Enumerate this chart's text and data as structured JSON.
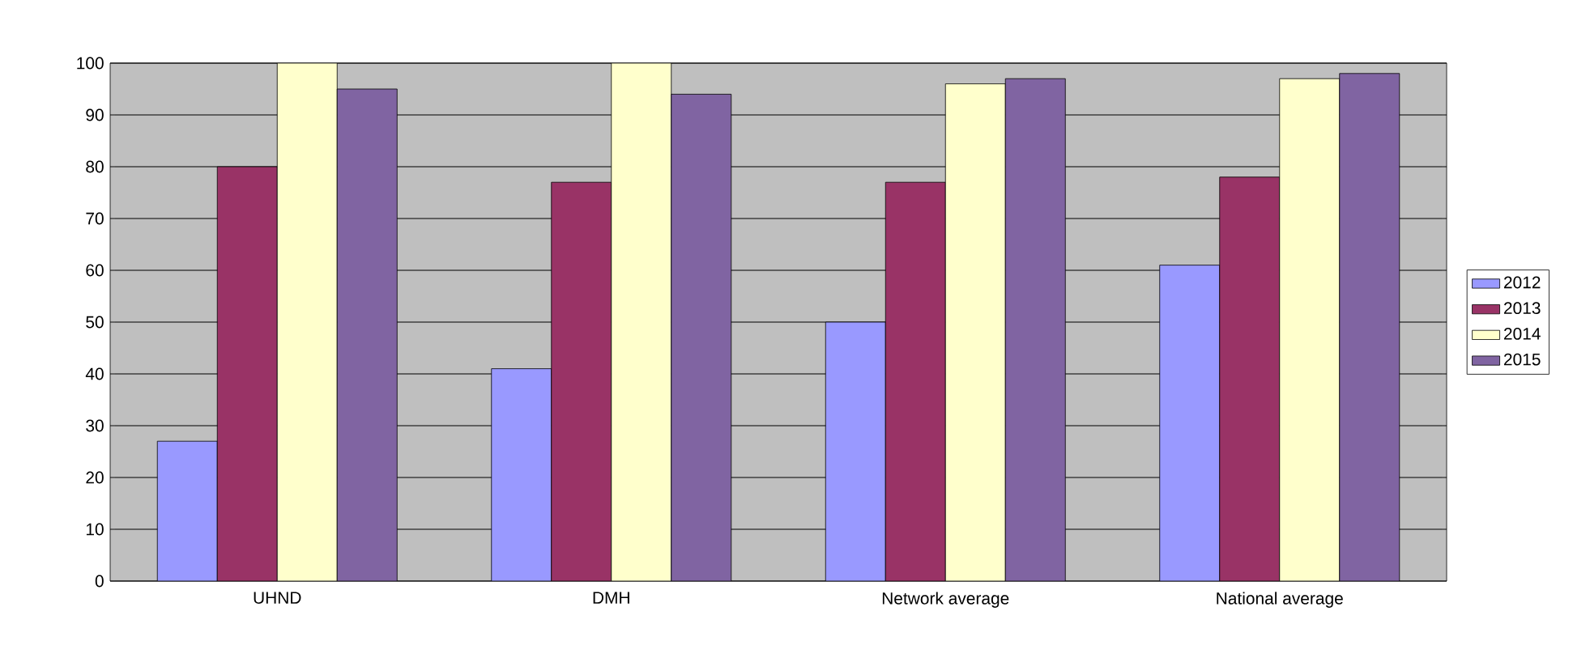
{
  "chart_data": {
    "type": "bar",
    "categories": [
      "UHND",
      "DMH",
      "Network average",
      "National average"
    ],
    "series": [
      {
        "name": "2012",
        "color": "#9999ff",
        "values": [
          27,
          41,
          50,
          61
        ]
      },
      {
        "name": "2013",
        "color": "#993366",
        "values": [
          80,
          77,
          77,
          78
        ]
      },
      {
        "name": "2014",
        "color": "#ffffcc",
        "values": [
          100,
          100,
          96,
          97
        ]
      },
      {
        "name": "2015",
        "color": "#8064a2",
        "values": [
          95,
          94,
          97,
          98
        ]
      }
    ],
    "ylim": [
      0,
      100
    ],
    "yticks": [
      0,
      10,
      20,
      30,
      40,
      50,
      60,
      70,
      80,
      90,
      100
    ],
    "grid": "y",
    "legend": "right"
  }
}
